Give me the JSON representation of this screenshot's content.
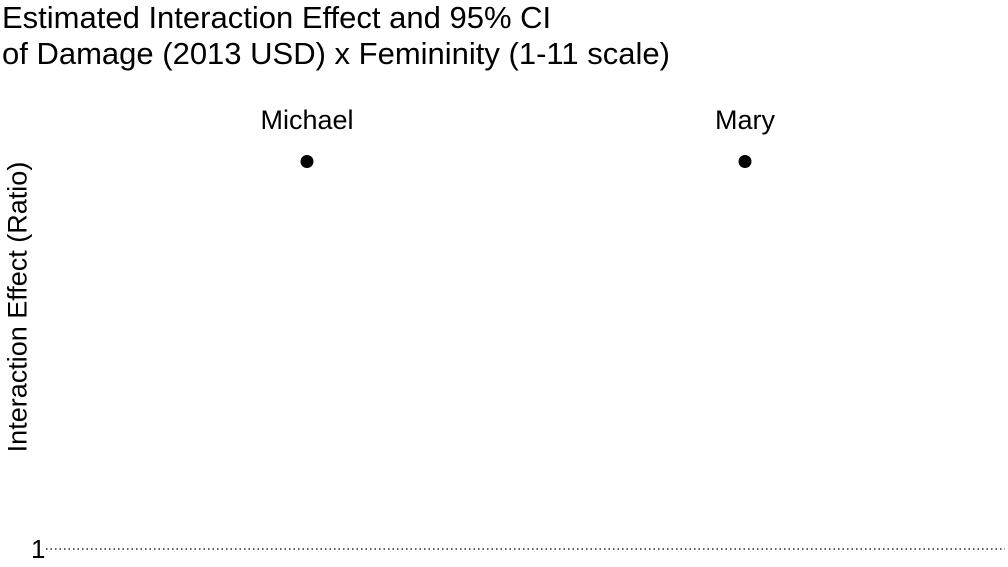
{
  "chart": {
    "title_line1": "Estimated Interaction Effect and 95% CI",
    "title_line2": "of Damage (2013 USD) x Femininity (1-11 scale)",
    "ylabel": "Interaction Effect (Ratio)"
  },
  "chart_data": {
    "type": "scatter",
    "subtype": "point-with-error-bars",
    "title": "Estimated Interaction Effect and 95% CI of Damage (2013 USD) x Femininity (1-11 scale)",
    "xlabel": "",
    "ylabel": "Interaction Effect (Ratio)",
    "categories": [
      "Michael",
      "Mary"
    ],
    "estimates": [
      1.0000363,
      1.0000363
    ],
    "ci_lower": [
      1.000036,
      1.000036
    ],
    "ci_upper": [
      1.0000366,
      1.0000366
    ],
    "reference_line": {
      "value": 1,
      "label": "1",
      "style": "dotted"
    },
    "yticks": [
      "1"
    ],
    "ylim": [
      1,
      1.000037
    ],
    "grid": false,
    "legend": "none",
    "colors": {
      "marker": "#000000",
      "line": "#000000"
    }
  }
}
